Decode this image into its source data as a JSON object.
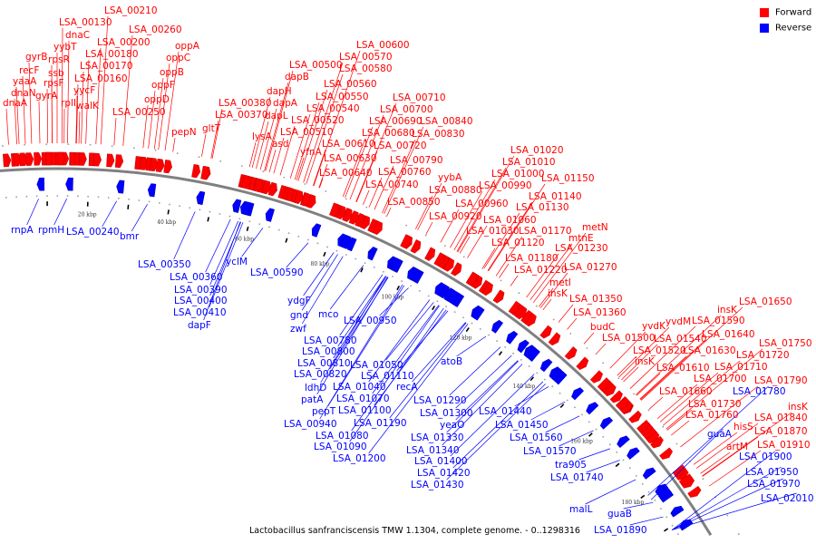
{
  "legend": {
    "forward": "Forward",
    "reverse": "Reverse",
    "forward_color": "#ff0000",
    "reverse_color": "#0000ff"
  },
  "footer": "Lactobacillus sanfranciscensis TMW 1.1304, complete genome. - 0..1298316",
  "scale_labels": [
    "20 kbp",
    "40 kbp",
    "60 kbp",
    "80 kbp",
    "100 kbp",
    "120 kbp",
    "140 kbp",
    "160 kbp",
    "180 kbp"
  ],
  "forward_labels": [
    "dnaA",
    "dnaN",
    "yaaA",
    "recF",
    "gyrB",
    "gyrA",
    "rpsF",
    "ssb",
    "rpsR",
    "yybT",
    "dnaC",
    "LSA_00130",
    "rplI",
    "yycF",
    "walK",
    "LSA_00160",
    "LSA_00170",
    "LSA_00180",
    "LSA_00200",
    "LSA_00210",
    "LSA_00260",
    "LSA_00250",
    "oppD",
    "oppF",
    "oppB",
    "oppC",
    "oppA",
    "pepN",
    "gltT",
    "LSA_00380",
    "LSA_00370",
    "lysA",
    "asd",
    "dapL",
    "dapA",
    "dapH",
    "dapB",
    "LSA_00500",
    "LSA_00510",
    "LSA_00520",
    "yfnA",
    "LSA_00540",
    "LSA_00550",
    "LSA_00560",
    "LSA_00610",
    "LSA_00630",
    "LSA_00640",
    "LSA_00570",
    "LSA_00580",
    "LSA_00600",
    "LSA_00710",
    "LSA_00700",
    "LSA_00690",
    "LSA_00680",
    "LSA_00720",
    "LSA_00840",
    "LSA_00830",
    "LSA_00790",
    "LSA_00760",
    "LSA_00740",
    "LSA_00850",
    "yybA",
    "LSA_00880",
    "LSA_00920",
    "LSA_00960",
    "LSA_01020",
    "LSA_01010",
    "LSA_01000",
    "LSA_00990",
    "LSA_01150",
    "LSA_01140",
    "LSA_01130",
    "LSA_01060",
    "LSA_01030",
    "LSA_01170",
    "LSA_01120",
    "metN",
    "mtnE",
    "LSA_01230",
    "LSA_01180",
    "LSA_01220",
    "LSA_01270",
    "metI",
    "insK",
    "LSA_01350",
    "LSA_01360",
    "budC",
    "LSA_01500",
    "yvdK",
    "yvdM",
    "LSA_01590",
    "insK",
    "LSA_01650",
    "LSA_01540",
    "LSA_01640",
    "LSA_01520",
    "LSA_01630",
    "insK",
    "LSA_01610",
    "LSA_01750",
    "LSA_01720",
    "LSA_01710",
    "LSA_01700",
    "LSA_01790",
    "LSA_01660",
    "LSA_01730",
    "LSA_01760",
    "insK",
    "LSA_01840",
    "hisS",
    "LSA_01870",
    "artM",
    "LSA_01910"
  ],
  "reverse_labels": [
    "rnpA",
    "rpmH",
    "LSA_00240",
    "bmr",
    "LSA_00350",
    "LSA_00360",
    "LSA_00390",
    "LSA_00400",
    "LSA_00410",
    "dapF",
    "yclM",
    "LSA_00590",
    "ydgF",
    "gnd",
    "mco",
    "zwf",
    "LSA_00950",
    "LSA_00780",
    "LSA_00800",
    "LSA_00810",
    "LSA_00820",
    "ldhD",
    "patA",
    "pepT",
    "LSA_00940",
    "LSA_01050",
    "LSA_01110",
    "LSA_01040",
    "recA",
    "LSA_01070",
    "LSA_01100",
    "LSA_01190",
    "LSA_01080",
    "LSA_01090",
    "LSA_01200",
    "atoB",
    "LSA_01290",
    "LSA_01300",
    "yeaO",
    "LSA_01330",
    "LSA_01340",
    "LSA_01400",
    "LSA_01420",
    "LSA_01430",
    "LSA_01440",
    "LSA_01450",
    "LSA_01560",
    "LSA_01570",
    "tra905",
    "LSA_01740",
    "malL",
    "guaB",
    "LSA_01890",
    "LSA_01780",
    "guaA",
    "LSA_01900",
    "LSA_01950",
    "LSA_01970",
    "LSA_02010"
  ]
}
